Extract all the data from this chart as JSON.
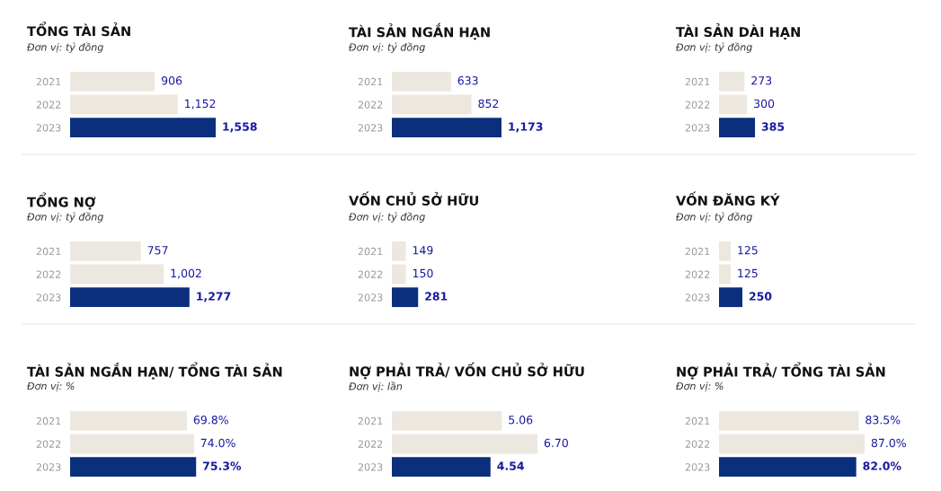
{
  "chart_data": [
    {
      "type": "bar",
      "orientation": "horizontal",
      "title": "TỔNG TÀI SẢN",
      "subtitle": "Đơn vị: tỷ đồng",
      "categories": [
        "2021",
        "2022",
        "2023"
      ],
      "values": [
        906,
        1152,
        1558
      ],
      "value_labels": [
        "906",
        "1,152",
        "1,558"
      ],
      "colors": [
        "#ede8df",
        "#ede8df",
        "#0b2f7c"
      ],
      "tick_labels": "y"
    },
    {
      "type": "bar",
      "orientation": "horizontal",
      "title": "TÀI SẢN NGẮN HẠN",
      "subtitle": "Đơn vị: tỷ đồng",
      "categories": [
        "2021",
        "2022",
        "2023"
      ],
      "values": [
        633,
        852,
        1173
      ],
      "value_labels": [
        "633",
        "852",
        "1,173"
      ],
      "colors": [
        "#ede8df",
        "#ede8df",
        "#0b2f7c"
      ],
      "tick_labels": "y"
    },
    {
      "type": "bar",
      "orientation": "horizontal",
      "title": "TÀI SẢN DÀI HẠN",
      "subtitle": "Đơn vị: tỷ đồng",
      "categories": [
        "2021",
        "2022",
        "2023"
      ],
      "values": [
        273,
        300,
        385
      ],
      "value_labels": [
        "273",
        "300",
        "385"
      ],
      "colors": [
        "#ede8df",
        "#ede8df",
        "#0b2f7c"
      ],
      "tick_labels": "y"
    },
    {
      "type": "bar",
      "orientation": "horizontal",
      "title": "TỔNG NỢ",
      "subtitle": "Đơn vị: tỷ đồng",
      "categories": [
        "2021",
        "2022",
        "2023"
      ],
      "values": [
        757,
        1002,
        1277
      ],
      "value_labels": [
        "757",
        "1,002",
        "1,277"
      ],
      "colors": [
        "#ede8df",
        "#ede8df",
        "#0b2f7c"
      ],
      "tick_labels": "y"
    },
    {
      "type": "bar",
      "orientation": "horizontal",
      "title": "VỐN CHỦ SỞ HỮU",
      "subtitle": "Đơn vị: tỷ đồng",
      "categories": [
        "2021",
        "2022",
        "2023"
      ],
      "values": [
        149,
        150,
        281
      ],
      "value_labels": [
        "149",
        "150",
        "281"
      ],
      "colors": [
        "#ede8df",
        "#ede8df",
        "#0b2f7c"
      ],
      "tick_labels": "y"
    },
    {
      "type": "bar",
      "orientation": "horizontal",
      "title": "VỐN ĐĂNG KÝ",
      "subtitle": "Đơn vị: tỷ đồng",
      "categories": [
        "2021",
        "2022",
        "2023"
      ],
      "values": [
        125,
        125,
        250
      ],
      "value_labels": [
        "125",
        "125",
        "250"
      ],
      "colors": [
        "#ede8df",
        "#ede8df",
        "#0b2f7c"
      ],
      "tick_labels": "y"
    },
    {
      "type": "bar",
      "orientation": "horizontal",
      "title": "TÀI SẢN NGẮN HẠN/ TỔNG TÀI SẢN",
      "subtitle": "Đơn vị: %",
      "categories": [
        "2021",
        "2022",
        "2023"
      ],
      "values": [
        69.8,
        74.0,
        75.3
      ],
      "value_labels": [
        "69.8%",
        "74.0%",
        "75.3%"
      ],
      "colors": [
        "#ede8df",
        "#ede8df",
        "#0b2f7c"
      ],
      "tick_labels": "y"
    },
    {
      "type": "bar",
      "orientation": "horizontal",
      "title": "NỢ PHẢI TRẢ/ VỐN CHỦ SỞ HỮU",
      "subtitle": "Đơn vị: lần",
      "categories": [
        "2021",
        "2022",
        "2023"
      ],
      "values": [
        5.06,
        6.7,
        4.54
      ],
      "value_labels": [
        "5.06",
        "6.70",
        "4.54"
      ],
      "colors": [
        "#ede8df",
        "#ede8df",
        "#0b2f7c"
      ],
      "tick_labels": "y"
    },
    {
      "type": "bar",
      "orientation": "horizontal",
      "title": "NỢ PHẢI TRẢ/ TỔNG TÀI SẢN",
      "subtitle": "Đơn vị: %",
      "categories": [
        "2021",
        "2022",
        "2023"
      ],
      "values": [
        83.5,
        87.0,
        82.0
      ],
      "value_labels": [
        "83.5%",
        "87.0%",
        "82.0%"
      ],
      "colors": [
        "#ede8df",
        "#ede8df",
        "#0b2f7c"
      ],
      "tick_labels": "y"
    }
  ]
}
